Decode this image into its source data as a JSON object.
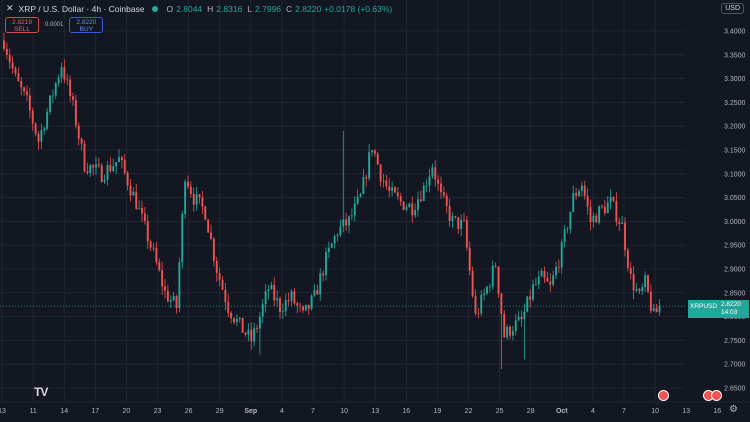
{
  "header": {
    "symbol": "XRP / U.S. Dollar · 4h · Coinbase",
    "open_label": "O",
    "open": "2.8044",
    "high_label": "H",
    "high": "2.8316",
    "low_label": "L",
    "low": "2.7996",
    "close_label": "C",
    "close": "2.8220",
    "change": "+0.0178 (+0.63%)"
  },
  "trade": {
    "sell_price": "2.8219",
    "sell_label": "SELL",
    "spread": "0.0001",
    "buy_price": "2.8220",
    "buy_label": "BUY"
  },
  "currency": "USD",
  "price_tag": {
    "symbol": "XRPUSD",
    "price": "2.8220",
    "countdown": "14:03"
  },
  "logo": "TV",
  "colors": {
    "up": "#26a69a",
    "down": "#ef5350",
    "background": "#131722",
    "grid": "#2a2e39"
  },
  "chart_data": {
    "type": "candlestick",
    "y_ticks": [
      "3.4000",
      "3.3500",
      "3.3000",
      "3.2500",
      "3.2000",
      "3.1500",
      "3.1000",
      "3.0500",
      "3.0000",
      "2.9500",
      "2.9000",
      "2.8500",
      "2.8000",
      "2.7500",
      "2.7000",
      "2.6500"
    ],
    "x_ticks": [
      "13",
      "11",
      "14",
      "17",
      "20",
      "23",
      "26",
      "29",
      "Sep",
      "4",
      "7",
      "10",
      "13",
      "16",
      "19",
      "22",
      "25",
      "28",
      "Oct",
      "4",
      "7",
      "10",
      "13",
      "16"
    ],
    "ylim": [
      2.635,
      3.43
    ],
    "last_price": 2.822,
    "key_points": [
      [
        0,
        3.38
      ],
      [
        4,
        3.3
      ],
      [
        8,
        3.25
      ],
      [
        12,
        3.17
      ],
      [
        16,
        3.25
      ],
      [
        20,
        3.33
      ],
      [
        24,
        3.24
      ],
      [
        28,
        3.12
      ],
      [
        34,
        3.1
      ],
      [
        40,
        3.13
      ],
      [
        46,
        3.04
      ],
      [
        52,
        2.93
      ],
      [
        56,
        2.85
      ],
      [
        60,
        2.82
      ],
      [
        63,
        3.1
      ],
      [
        66,
        3.05
      ],
      [
        70,
        3.02
      ],
      [
        74,
        2.9
      ],
      [
        78,
        2.82
      ],
      [
        82,
        2.78
      ],
      [
        86,
        2.75
      ],
      [
        88,
        2.78
      ],
      [
        92,
        2.86
      ],
      [
        96,
        2.82
      ],
      [
        100,
        2.84
      ],
      [
        104,
        2.8
      ],
      [
        108,
        2.84
      ],
      [
        112,
        2.92
      ],
      [
        116,
        2.98
      ],
      [
        120,
        3.0
      ],
      [
        124,
        3.05
      ],
      [
        128,
        3.16
      ],
      [
        131,
        3.1
      ],
      [
        134,
        3.06
      ],
      [
        138,
        3.04
      ],
      [
        142,
        3.03
      ],
      [
        146,
        3.07
      ],
      [
        149,
        3.12
      ],
      [
        152,
        3.05
      ],
      [
        156,
        3.0
      ],
      [
        160,
        2.99
      ],
      [
        164,
        2.8
      ],
      [
        168,
        2.86
      ],
      [
        171,
        2.91
      ],
      [
        174,
        2.76
      ],
      [
        177,
        2.78
      ],
      [
        180,
        2.79
      ],
      [
        184,
        2.86
      ],
      [
        187,
        2.88
      ],
      [
        190,
        2.86
      ],
      [
        194,
        2.94
      ],
      [
        198,
        3.05
      ],
      [
        201,
        3.08
      ],
      [
        204,
        3.0
      ],
      [
        207,
        3.02
      ],
      [
        211,
        3.04
      ],
      [
        215,
        2.99
      ],
      [
        218,
        2.88
      ],
      [
        221,
        2.84
      ],
      [
        223,
        2.87
      ],
      [
        226,
        2.8
      ],
      [
        228,
        2.82
      ]
    ],
    "spikes": [
      [
        173,
        2.69,
        "low"
      ],
      [
        181,
        2.71,
        "low"
      ],
      [
        89,
        2.72,
        "low"
      ],
      [
        118,
        3.19,
        "high"
      ]
    ]
  }
}
